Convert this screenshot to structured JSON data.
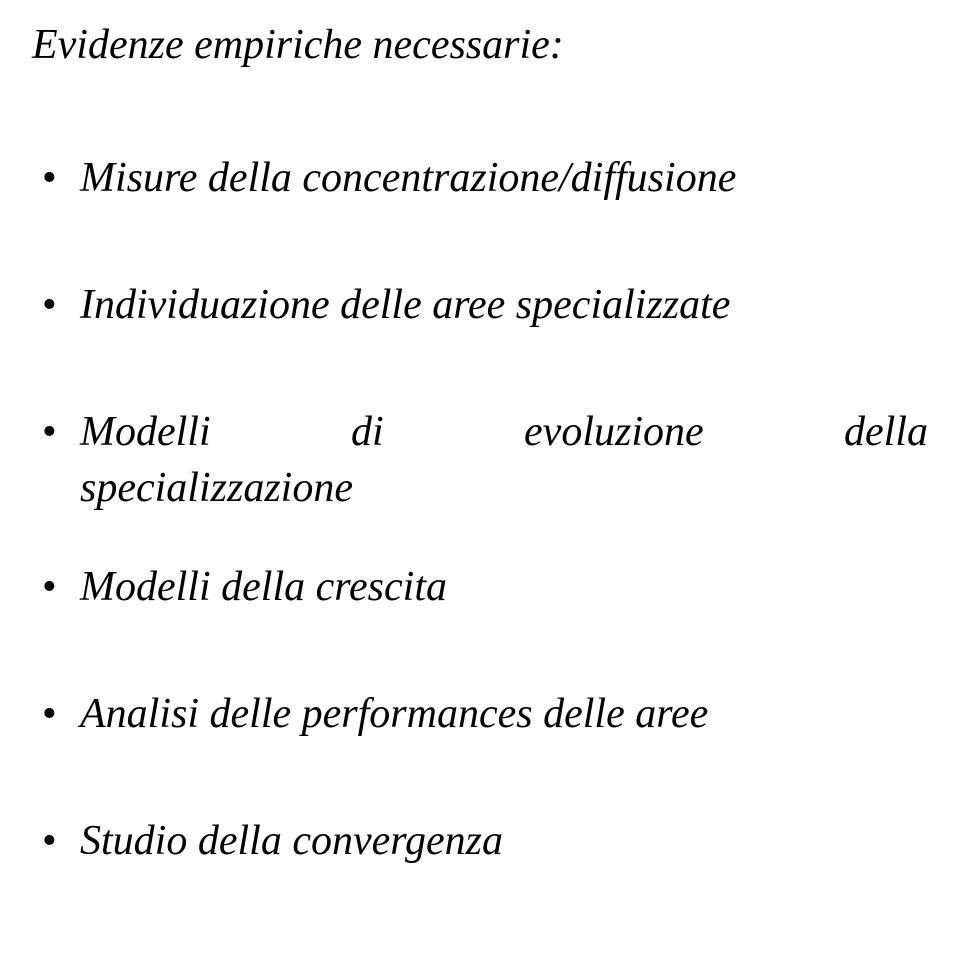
{
  "document": {
    "title": "Evidenze empiriche necessarie:",
    "items": [
      {
        "text": "Misure della concentrazione/diffusione"
      },
      {
        "text": "Individuazione delle aree specializzate"
      },
      {
        "justified": true,
        "words": [
          "Modelli",
          "di",
          "evoluzione",
          "della"
        ],
        "line2": "specializzazione"
      },
      {
        "text": "Modelli della crescita"
      },
      {
        "text": "Analisi delle performances delle aree"
      },
      {
        "text": "Studio della convergenza"
      }
    ],
    "font_family": "Comic Sans MS",
    "font_size_pt": 32,
    "font_style": "italic",
    "text_color": "#000000",
    "background_color": "#ffffff"
  }
}
